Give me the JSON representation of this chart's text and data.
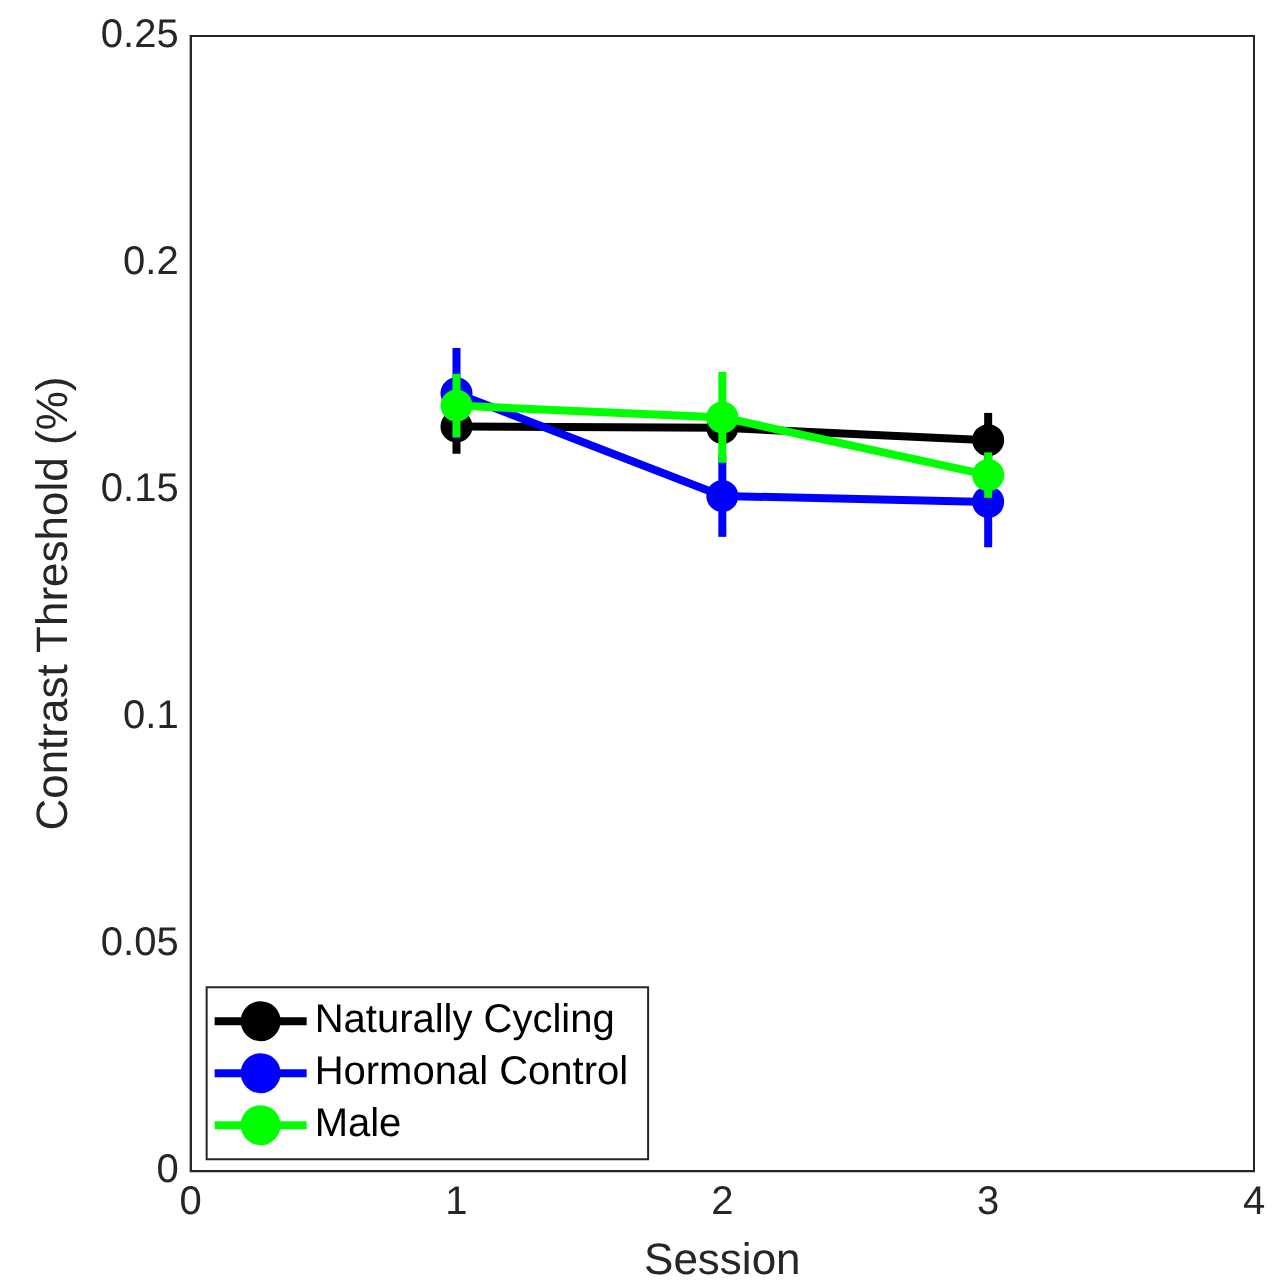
{
  "chart_data": {
    "type": "line",
    "xlabel": "Session",
    "ylabel": "Contrast Threshold (%)",
    "x": [
      1,
      2,
      3
    ],
    "xlim": [
      0,
      4
    ],
    "xticks": [
      0,
      1,
      2,
      3,
      4
    ],
    "ylim": [
      0,
      0.25
    ],
    "yticks": [
      0,
      0.05,
      0.1,
      0.15,
      0.2,
      0.25
    ],
    "series": [
      {
        "name": "Naturally Cycling",
        "color": "#000000",
        "values": [
          0.164,
          0.1637,
          0.161
        ],
        "errors": [
          0.006,
          null,
          0.006
        ]
      },
      {
        "name": "Hormonal Control",
        "color": "#0000ff",
        "values": [
          0.1713,
          0.1487,
          0.1474
        ],
        "errors": [
          0.01,
          0.009,
          0.01
        ]
      },
      {
        "name": "Male",
        "color": "#00ff00",
        "values": [
          0.1686,
          0.166,
          0.1533
        ],
        "errors": [
          0.007,
          0.01,
          0.005
        ]
      }
    ],
    "grid": false,
    "legend": "bottom left",
    "marker": "circle",
    "line_style": "solid"
  }
}
